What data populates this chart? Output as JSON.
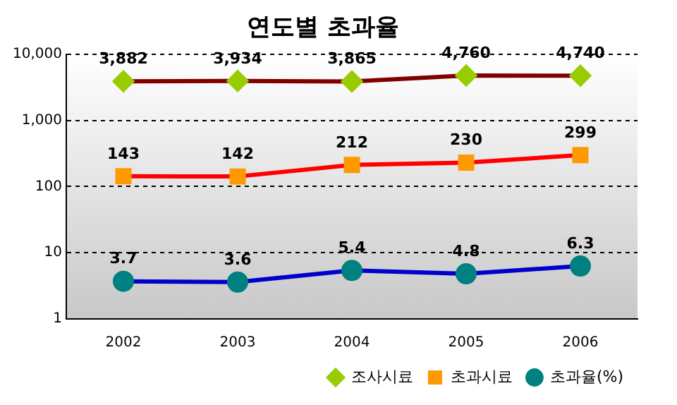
{
  "chart_data": {
    "type": "line",
    "title": "연도별 초과율",
    "categories": [
      "2002",
      "2003",
      "2004",
      "2005",
      "2006"
    ],
    "series": [
      {
        "name": "조사시료",
        "color": "#800000",
        "colors": [
          "#99cc00",
          "#99cc00",
          "#99cc00",
          "#99cc00",
          "#99cc00"
        ],
        "marker": "diamond",
        "values": [
          3882,
          3934,
          3865,
          4760,
          4740
        ],
        "value_labels": [
          "3,882",
          "3,934",
          "3,865",
          "4,760",
          "4,740"
        ]
      },
      {
        "name": "초과시료",
        "color": "#ff0000",
        "colors": [
          "#ff9900",
          "#ff9900",
          "#ff9900",
          "#ff9900",
          "#ff9900"
        ],
        "marker": "square",
        "values": [
          143,
          142,
          212,
          230,
          299
        ]
      },
      {
        "name": "초과율(%)",
        "color": "#0000cc",
        "colors": [
          "#008080",
          "#008080",
          "#008080",
          "#008080",
          "#008080"
        ],
        "marker": "circle",
        "values": [
          3.7,
          3.6,
          5.4,
          4.8,
          6.3
        ]
      }
    ],
    "log": "y",
    "ylim": [
      1,
      10000
    ],
    "yticks": [
      1,
      10,
      100,
      {
        "value": 1000,
        "label": "1,000"
      },
      {
        "value": 10000,
        "label": "10,000"
      }
    ],
    "grid": "y",
    "legend": "bottom",
    "data_labels": true
  }
}
